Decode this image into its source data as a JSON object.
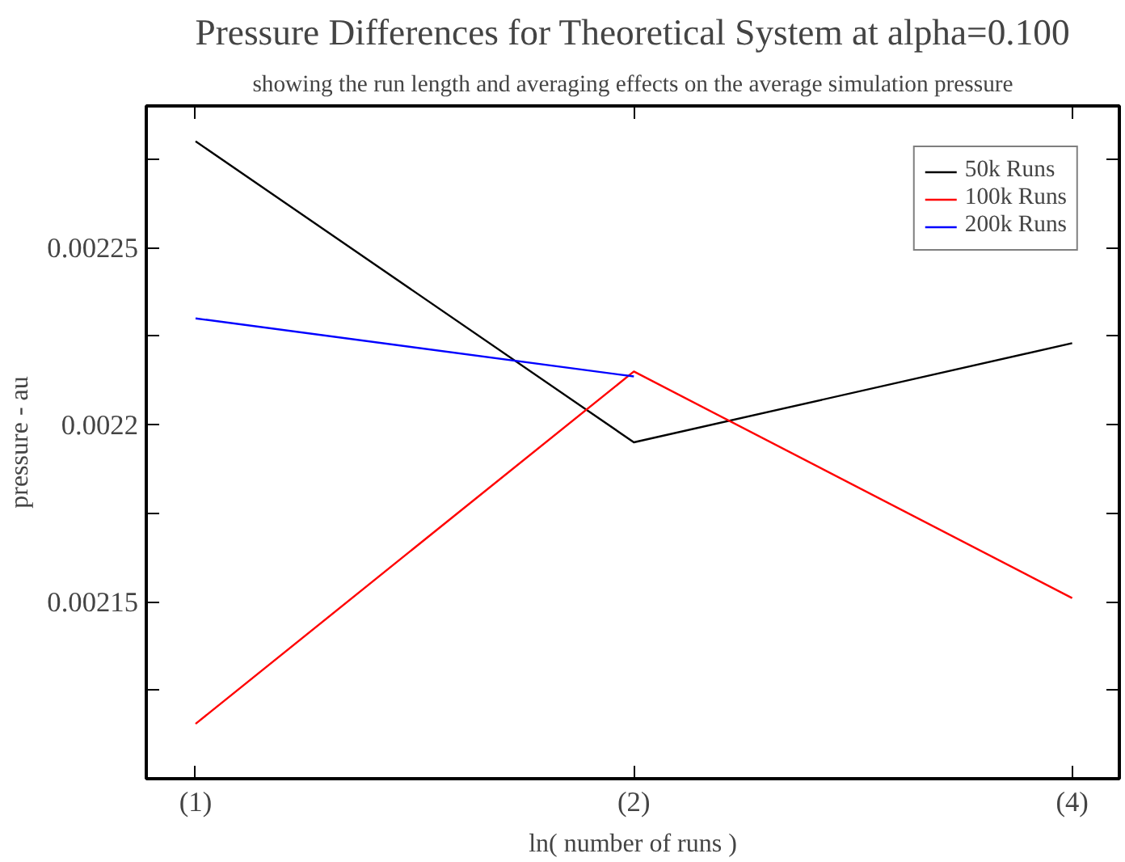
{
  "chart_data": {
    "type": "line",
    "title": "Pressure Differences for Theoretical System at alpha=0.100",
    "subtitle": "showing the run length and averaging effects on the average simulation pressure",
    "xlabel": "ln( number of runs )",
    "ylabel": "pressure - au",
    "x": [
      1,
      2,
      4
    ],
    "series": [
      {
        "name": "50k Runs",
        "color": "#000000",
        "values": [
          0.00228,
          0.002195,
          0.002223
        ]
      },
      {
        "name": "100k Runs",
        "color": "#ff0000",
        "values": [
          0.0021155,
          0.002215,
          0.002151
        ]
      },
      {
        "name": "200k Runs",
        "color": "#0000ff",
        "x": [
          1,
          2
        ],
        "values": [
          0.00223,
          0.0022136
        ]
      }
    ],
    "xlim": [
      0.925,
      4.31
    ],
    "xticks": [
      {
        "value": 1,
        "label": "(1)"
      },
      {
        "value": 2,
        "label": "(2)"
      },
      {
        "value": 4,
        "label": "(4)"
      }
    ],
    "log": "x",
    "ylim": [
      0.0021,
      0.00229
    ],
    "yticks": [
      {
        "value": 0.002125,
        "label": null
      },
      0.00215,
      {
        "value": 0.002175,
        "label": null
      },
      0.0022,
      {
        "value": 0.002225,
        "label": null
      },
      0.00225,
      {
        "value": 0.002275,
        "label": null
      }
    ],
    "grid": false,
    "legend": "top right",
    "marker": "none",
    "line_style": "solid"
  }
}
